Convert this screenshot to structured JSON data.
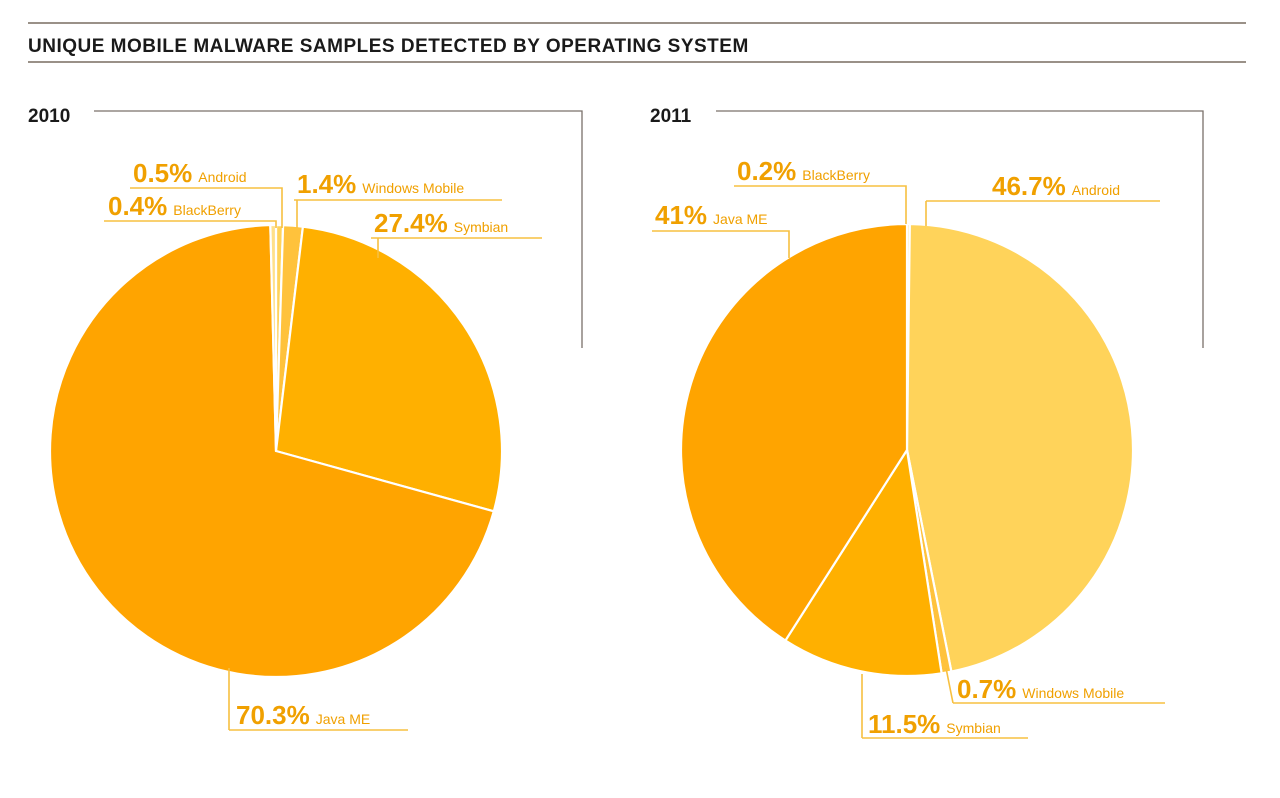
{
  "chart_data": [
    {
      "type": "pie",
      "title": "UNIQUE MOBILE MALWARE SAMPLES DETECTED BY OPERATING SYSTEM",
      "subtitle": "2010",
      "slices": [
        {
          "label": "Android",
          "value": 0.5,
          "pct_text": "0.5%",
          "color": "#ffd35a"
        },
        {
          "label": "Windows Mobile",
          "value": 1.4,
          "pct_text": "1.4%",
          "color": "#ffc23c"
        },
        {
          "label": "Symbian",
          "value": 27.4,
          "pct_text": "27.4%",
          "color": "#ffb000"
        },
        {
          "label": "Java ME",
          "value": 70.3,
          "pct_text": "70.3%",
          "color": "#ffa400"
        },
        {
          "label": "BlackBerry",
          "value": 0.4,
          "pct_text": "0.4%",
          "color": "#ffe08a"
        }
      ]
    },
    {
      "type": "pie",
      "title": "UNIQUE MOBILE MALWARE SAMPLES DETECTED BY OPERATING SYSTEM",
      "subtitle": "2011",
      "slices": [
        {
          "label": "BlackBerry",
          "value": 0.2,
          "pct_text": "0.2%",
          "color": "#ffe08a"
        },
        {
          "label": "Android",
          "value": 46.7,
          "pct_text": "46.7%",
          "color": "#ffd35a"
        },
        {
          "label": "Windows Mobile",
          "value": 0.7,
          "pct_text": "0.7%",
          "color": "#ffc23c"
        },
        {
          "label": "Symbian",
          "value": 11.5,
          "pct_text": "11.5%",
          "color": "#ffb000"
        },
        {
          "label": "Java ME",
          "value": 41,
          "pct_text": "41%",
          "color": "#ffa400"
        }
      ]
    }
  ]
}
